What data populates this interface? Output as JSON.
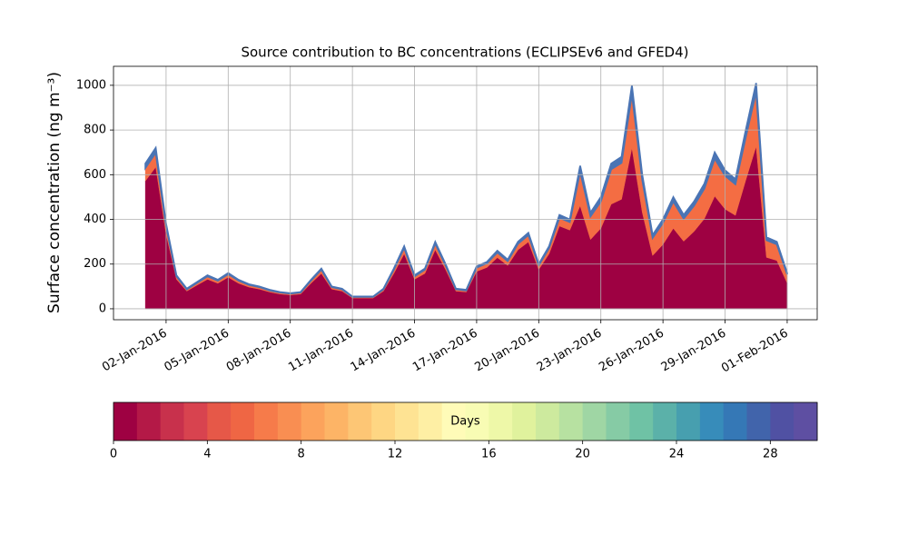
{
  "chart_data": {
    "type": "stacked_area",
    "title": "Source contribution to BC concentrations (ECLIPSEv6 and GFED4)",
    "ylabel": "Surface concentration (ng m⁻³)",
    "x": [
      1,
      1.5,
      2,
      2.5,
      3,
      3.5,
      4,
      4.5,
      5,
      5.5,
      6,
      6.5,
      7,
      7.5,
      8,
      8.5,
      9,
      9.5,
      10,
      10.5,
      11,
      11.5,
      12,
      12.5,
      13,
      13.5,
      14,
      14.5,
      15,
      15.5,
      16,
      16.5,
      17,
      17.5,
      18,
      18.5,
      19,
      19.5,
      20,
      20.5,
      21,
      21.5,
      22,
      22.5,
      23,
      23.5,
      24,
      24.5,
      25,
      25.5,
      26,
      26.5,
      27,
      27.5,
      28,
      28.5,
      29,
      29.5,
      30,
      30.5,
      31,
      31.5,
      32
    ],
    "series": [
      {
        "color": "#9e0142",
        "values": [
          572,
          634,
          334,
          132,
          79,
          106,
          132,
          114,
          141,
          114,
          97,
          88,
          75,
          66,
          62,
          66,
          114,
          158,
          88,
          79,
          48,
          48,
          48,
          79,
          158,
          246,
          132,
          158,
          264,
          176,
          79,
          75,
          167,
          185,
          229,
          194,
          264,
          299,
          176,
          246,
          370,
          352,
          461,
          310,
          360,
          468,
          490,
          720,
          432,
          238,
          288,
          360,
          302,
          346,
          403,
          504,
          446,
          418,
          576,
          727,
          230,
          216,
          115
        ]
      },
      {
        "color": "#f46d43",
        "values": [
          58,
          64,
          35,
          13,
          8,
          10,
          13,
          12,
          14,
          12,
          10,
          9,
          7,
          7,
          6,
          7,
          12,
          17,
          9,
          8,
          5,
          5,
          5,
          8,
          17,
          26,
          13,
          17,
          27,
          18,
          8,
          7,
          17,
          19,
          23,
          19,
          27,
          31,
          18,
          26,
          37,
          36,
          153,
          103,
          120,
          156,
          163,
          240,
          144,
          79,
          96,
          120,
          101,
          115,
          135,
          168,
          149,
          139,
          192,
          243,
          77,
          72,
          39
        ]
      },
      {
        "color": "#4a74b4",
        "values": [
          20,
          22,
          11,
          5,
          3,
          4,
          5,
          4,
          5,
          4,
          3,
          3,
          3,
          2,
          2,
          2,
          4,
          5,
          3,
          3,
          2,
          2,
          2,
          3,
          5,
          8,
          5,
          5,
          9,
          6,
          3,
          3,
          6,
          6,
          8,
          7,
          9,
          10,
          6,
          8,
          13,
          12,
          26,
          17,
          20,
          26,
          27,
          40,
          24,
          13,
          16,
          20,
          17,
          19,
          22,
          28,
          25,
          23,
          32,
          40,
          13,
          12,
          6
        ]
      }
    ],
    "xlim": [
      -0.54,
      33.45
    ],
    "xticks": [
      {
        "value": 2,
        "label": "02-Jan-2016"
      },
      {
        "value": 5,
        "label": "05-Jan-2016"
      },
      {
        "value": 8,
        "label": "08-Jan-2016"
      },
      {
        "value": 11,
        "label": "11-Jan-2016"
      },
      {
        "value": 14,
        "label": "14-Jan-2016"
      },
      {
        "value": 17,
        "label": "17-Jan-2016"
      },
      {
        "value": 20,
        "label": "20-Jan-2016"
      },
      {
        "value": 23,
        "label": "23-Jan-2016"
      },
      {
        "value": 26,
        "label": "26-Jan-2016"
      },
      {
        "value": 29,
        "label": "29-Jan-2016"
      },
      {
        "value": 32,
        "label": "01-Feb-2016"
      }
    ],
    "ylim": [
      -49,
      1085
    ],
    "yticks": [
      0,
      200,
      400,
      600,
      800,
      1000
    ],
    "grid": true,
    "colorbar": {
      "label": "Days",
      "lim": [
        0,
        30
      ],
      "ticks": [
        0,
        4,
        8,
        12,
        16,
        20,
        24,
        28
      ],
      "colors": [
        "#9e0142",
        "#b41947",
        "#c8314c",
        "#d8434f",
        "#e65848",
        "#ef6644",
        "#f67b4a",
        "#f98e52",
        "#fca35c",
        "#fdb466",
        "#fdc675",
        "#fed683",
        "#fee393",
        "#feefa4",
        "#fffbb8",
        "#f8fcb4",
        "#eef8a8",
        "#e0f29d",
        "#cdea9e",
        "#b7e1a1",
        "#9fd6a4",
        "#86cba5",
        "#6fc2a5",
        "#5bb1a9",
        "#479faf",
        "#378cba",
        "#3578b6",
        "#4164ab",
        "#5051a3",
        "#5e4fa2"
      ]
    }
  }
}
